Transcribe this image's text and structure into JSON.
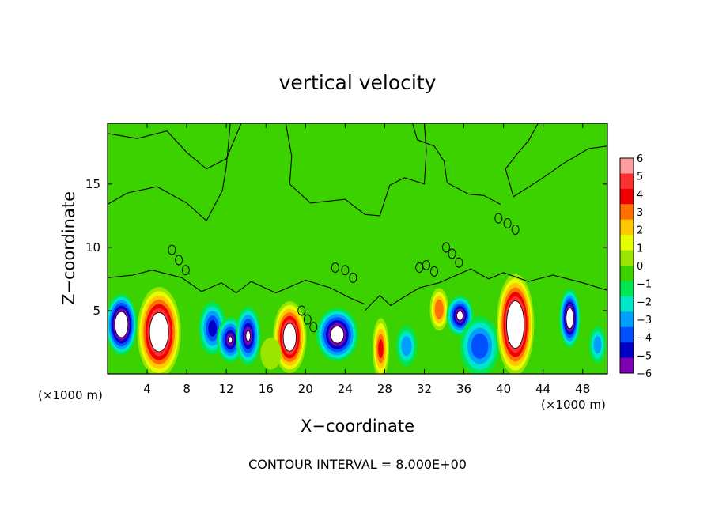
{
  "chart_data": {
    "type": "heatmap",
    "title": "vertical velocity",
    "xlabel": "X−coordinate",
    "ylabel": "Z−coordinate",
    "x_unit_left": "(×1000 m)",
    "x_unit_right": "(×1000 m)",
    "xlim": [
      0,
      50.5
    ],
    "ylim": [
      0,
      19.8
    ],
    "xticks": [
      4,
      8,
      12,
      16,
      20,
      24,
      28,
      32,
      36,
      40,
      44,
      48
    ],
    "yticks": [
      5,
      10,
      15
    ],
    "footer": "CONTOUR INTERVAL = 8.000E+00",
    "colorbar": {
      "range": [
        -6,
        6
      ],
      "labels": [
        "6",
        "5",
        "4",
        "3",
        "2",
        "1",
        "0",
        "−1",
        "−2",
        "−3",
        "−4",
        "−5",
        "−6"
      ],
      "colors": [
        "#ff9e9e",
        "#ff3030",
        "#f00000",
        "#ff7000",
        "#ffc800",
        "#e6ff00",
        "#9be600",
        "#3cd200",
        "#00e650",
        "#00e6c8",
        "#00a0ff",
        "#0050ff",
        "#0000c8",
        "#8000b4"
      ]
    },
    "cells": [
      {
        "x": 1.4,
        "z": 3.9,
        "w": -9.6,
        "rx": 1.5,
        "rz": 2.3
      },
      {
        "x": 5.2,
        "z": 3.3,
        "w": 9.8,
        "rx": 2.1,
        "rz": 3.4
      },
      {
        "x": 10.6,
        "z": 3.6,
        "w": -5.0,
        "rx": 1.3,
        "rz": 2.0
      },
      {
        "x": 12.4,
        "z": 2.7,
        "w": -6.2,
        "rx": 1.3,
        "rz": 1.7
      },
      {
        "x": 14.2,
        "z": 3.0,
        "w": -6.5,
        "rx": 1.2,
        "rz": 2.2
      },
      {
        "x": 18.4,
        "z": 2.9,
        "w": 9.0,
        "rx": 1.6,
        "rz": 2.7
      },
      {
        "x": 23.2,
        "z": 3.1,
        "w": -8.0,
        "rx": 2.0,
        "rz": 2.0
      },
      {
        "x": 27.6,
        "z": 2.0,
        "w": 5.0,
        "rx": 0.8,
        "rz": 2.3
      },
      {
        "x": 30.2,
        "z": 2.2,
        "w": -3.2,
        "rx": 1.0,
        "rz": 1.5
      },
      {
        "x": 33.5,
        "z": 5.1,
        "w": 4.8,
        "rx": 0.9,
        "rz": 1.6
      },
      {
        "x": 35.6,
        "z": 4.6,
        "w": -7.0,
        "rx": 1.3,
        "rz": 1.5
      },
      {
        "x": 37.6,
        "z": 2.2,
        "w": -4.5,
        "rx": 1.9,
        "rz": 2.2
      },
      {
        "x": 41.2,
        "z": 3.9,
        "w": 10.5,
        "rx": 1.8,
        "rz": 3.8
      },
      {
        "x": 46.7,
        "z": 4.4,
        "w": -8.5,
        "rx": 1.0,
        "rz": 2.2
      },
      {
        "x": 49.5,
        "z": 2.3,
        "w": -3.0,
        "rx": 0.8,
        "rz": 1.4
      },
      {
        "x": 16.5,
        "z": 1.6,
        "w": 1.8,
        "rx": 1.0,
        "rz": 1.2
      }
    ]
  }
}
